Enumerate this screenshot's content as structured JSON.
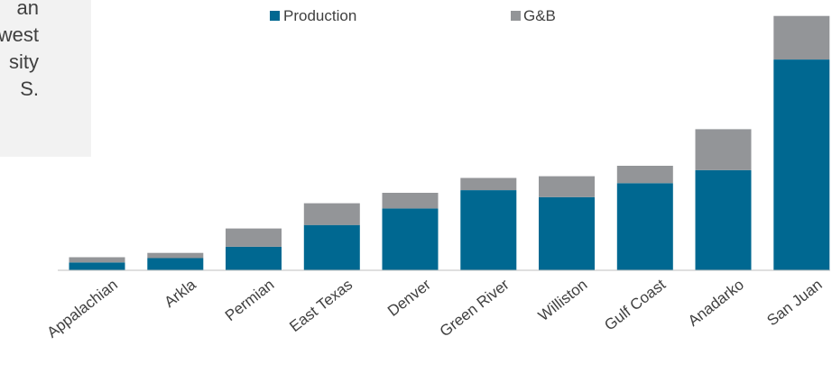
{
  "callout": {
    "text": "an\nwest\nsity\nS."
  },
  "colors": {
    "production": "#006891",
    "gb": "#939598",
    "axis": "#bfbfbf",
    "text": "#404040"
  },
  "chart_data": {
    "type": "bar",
    "stacked": true,
    "categories": [
      "Appalachian",
      "Arkla",
      "Permian",
      "East Texas",
      "Denver",
      "Green River",
      "Williston",
      "Gulf Coast",
      "Anadarko",
      "San Juan"
    ],
    "series": [
      {
        "name": "Production",
        "values": [
          0.09,
          0.14,
          0.27,
          0.52,
          0.71,
          0.92,
          0.84,
          1.0,
          1.15,
          2.42
        ]
      },
      {
        "name": "G&B",
        "values": [
          0.06,
          0.06,
          0.21,
          0.25,
          0.18,
          0.14,
          0.24,
          0.2,
          0.47,
          0.5
        ]
      }
    ],
    "ylim": [
      0,
      3.0
    ],
    "grid": false,
    "legend": "top-center"
  }
}
